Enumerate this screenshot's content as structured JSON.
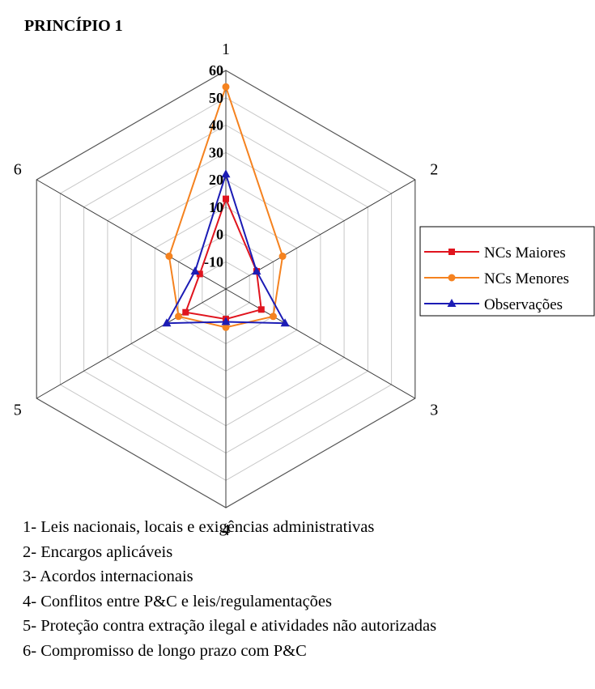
{
  "chart_data": {
    "type": "radar",
    "title": "PRINCÍPIO 1",
    "axes": [
      "1",
      "2",
      "3",
      "4",
      "5",
      "6"
    ],
    "rlim": [
      -20,
      60
    ],
    "ticks": [
      -10,
      0,
      10,
      20,
      30,
      40,
      50,
      60
    ],
    "tick_labels": [
      "-10",
      "0",
      "10",
      "20",
      "30",
      "40",
      "50",
      "60"
    ],
    "grid": true,
    "legend_position": "right",
    "series": [
      {
        "name": "NCs Maiores",
        "color": "#e0141e",
        "marker": "square",
        "values": [
          13,
          -7,
          -5,
          -9,
          -3,
          -9
        ]
      },
      {
        "name": "NCs Menores",
        "color": "#f5821f",
        "marker": "circle",
        "values": [
          54,
          4,
          0,
          -6,
          0,
          4
        ]
      },
      {
        "name": "Observações",
        "color": "#1c1cb5",
        "marker": "triangle",
        "values": [
          22,
          -7,
          5,
          -8,
          5,
          -7
        ]
      }
    ]
  },
  "notes": [
    "1- Leis nacionais, locais e exigências administrativas",
    "2- Encargos aplicáveis",
    "3- Acordos internacionais",
    "4- Conflitos entre P&C e leis/regulamentações",
    "5- Proteção contra extração ilegal e atividades não autorizadas",
    "6- Compromisso de longo prazo com P&C"
  ]
}
